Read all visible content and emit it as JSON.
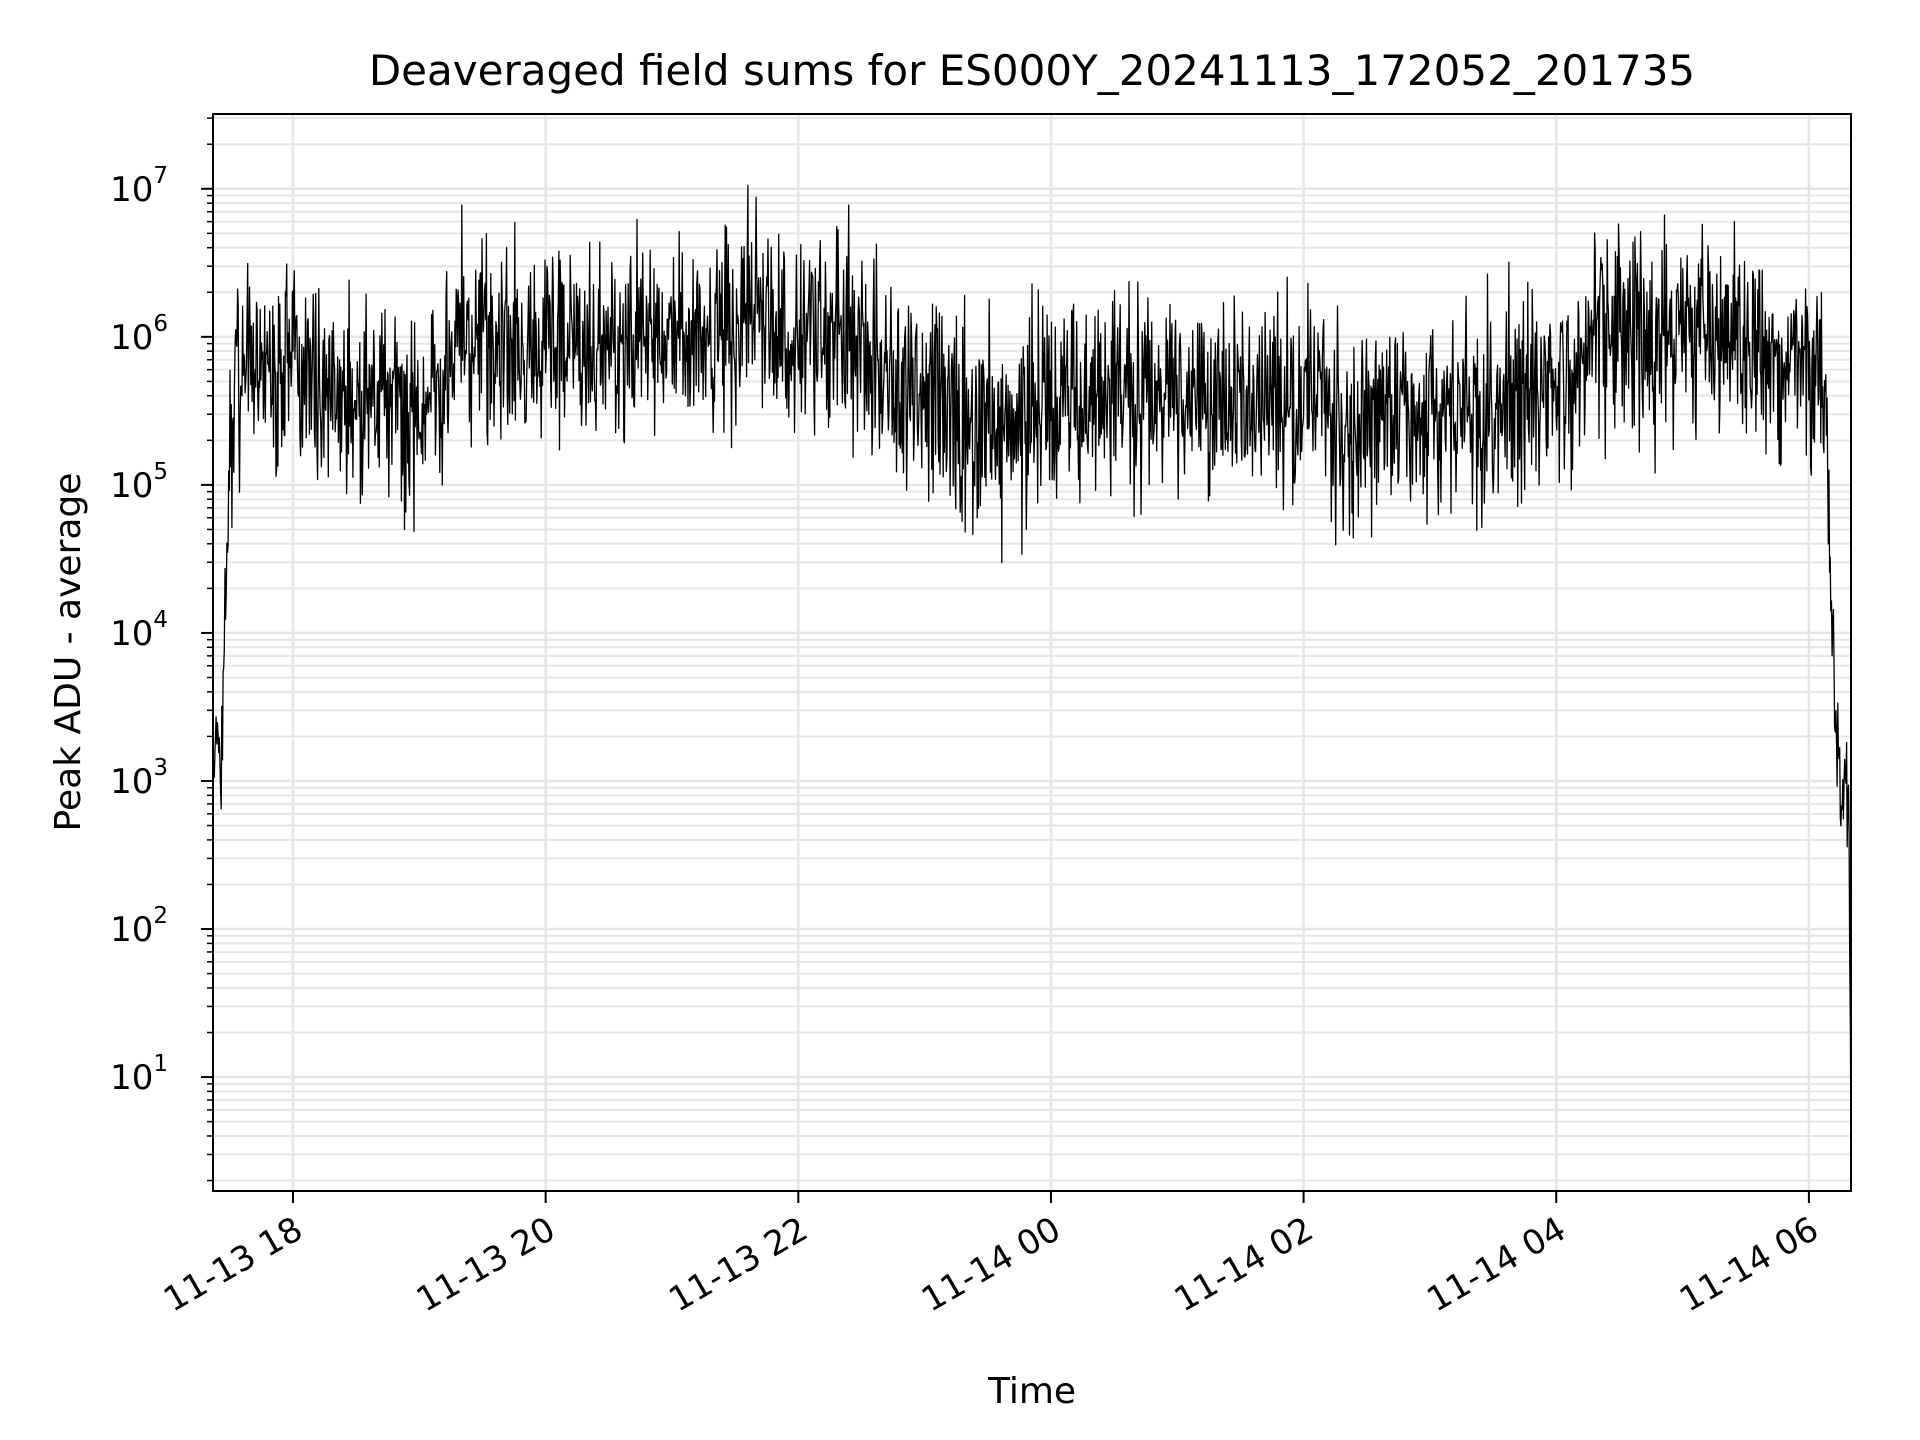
{
  "chart_data": {
    "type": "line",
    "title": "Deaveraged field sums for ES000Y_20241113_172052_201735",
    "xlabel": "Time",
    "ylabel": "Peak ADU - average",
    "yscale": "log",
    "ylim": [
      1.7,
      32000000
    ],
    "xlim": [
      "2024-11-13T17:22:00",
      "2024-11-14T06:20:00"
    ],
    "grid": "on",
    "line_color": "#000000",
    "grid_color": "#e6e6e6",
    "x_ticks": [
      {
        "t": "2024-11-13T18:00:00",
        "label": "11-13 18"
      },
      {
        "t": "2024-11-13T20:00:00",
        "label": "11-13 20"
      },
      {
        "t": "2024-11-13T22:00:00",
        "label": "11-13 22"
      },
      {
        "t": "2024-11-14T00:00:00",
        "label": "11-14 00"
      },
      {
        "t": "2024-11-14T02:00:00",
        "label": "11-14 02"
      },
      {
        "t": "2024-11-14T04:00:00",
        "label": "11-14 04"
      },
      {
        "t": "2024-11-14T06:00:00",
        "label": "11-14 06"
      }
    ],
    "y_ticks": [
      {
        "value": 10,
        "base": "10",
        "exp": "1"
      },
      {
        "value": 100,
        "base": "10",
        "exp": "2"
      },
      {
        "value": 1000,
        "base": "10",
        "exp": "3"
      },
      {
        "value": 10000,
        "base": "10",
        "exp": "4"
      },
      {
        "value": 100000,
        "base": "10",
        "exp": "5"
      },
      {
        "value": 1000000,
        "base": "10",
        "exp": "6"
      },
      {
        "value": 10000000,
        "base": "10",
        "exp": "7"
      }
    ],
    "series": [
      {
        "x": [
          "2024-11-13T17:22:00",
          "2024-11-13T17:24:00",
          "2024-11-13T17:26:00",
          "2024-11-13T17:28:00",
          "2024-11-13T17:30:00",
          "2024-11-13T17:33:00",
          "2024-11-13T17:36:00",
          "2024-11-13T17:40:00",
          "2024-11-13T17:50:00",
          "2024-11-13T18:00:00",
          "2024-11-13T18:10:00",
          "2024-11-13T18:20:00",
          "2024-11-13T18:40:00",
          "2024-11-13T19:00:00",
          "2024-11-13T19:20:00",
          "2024-11-13T19:40:00",
          "2024-11-13T20:00:00",
          "2024-11-13T20:20:00",
          "2024-11-13T20:40:00",
          "2024-11-13T21:00:00",
          "2024-11-13T21:20:00",
          "2024-11-13T21:40:00",
          "2024-11-13T22:00:00",
          "2024-11-13T22:20:00",
          "2024-11-13T22:40:00",
          "2024-11-13T23:00:00",
          "2024-11-13T23:20:00",
          "2024-11-13T23:40:00",
          "2024-11-14T00:00:00",
          "2024-11-14T00:20:00",
          "2024-11-14T00:40:00",
          "2024-11-14T01:00:00",
          "2024-11-14T01:20:00",
          "2024-11-14T01:40:00",
          "2024-11-14T02:00:00",
          "2024-11-14T02:20:00",
          "2024-11-14T02:40:00",
          "2024-11-14T03:00:00",
          "2024-11-14T03:20:00",
          "2024-11-14T03:40:00",
          "2024-11-14T04:00:00",
          "2024-11-14T04:20:00",
          "2024-11-14T04:40:00",
          "2024-11-14T05:00:00",
          "2024-11-14T05:20:00",
          "2024-11-14T05:40:00",
          "2024-11-14T06:00:00",
          "2024-11-14T06:08:00",
          "2024-11-14T06:11:00",
          "2024-11-14T06:13:00",
          "2024-11-14T06:15:00",
          "2024-11-14T06:17:00",
          "2024-11-14T06:19:00",
          "2024-11-14T06:20:00"
        ],
        "y": [
          1500,
          3000,
          900,
          20000,
          150000,
          700000,
          500000,
          800000,
          600000,
          700000,
          450000,
          400000,
          350000,
          300000,
          1200000,
          800000,
          900000,
          700000,
          800000,
          1000000,
          900000,
          1500000,
          800000,
          1200000,
          600000,
          500000,
          300000,
          250000,
          350000,
          300000,
          400000,
          400000,
          450000,
          350000,
          400000,
          300000,
          300000,
          350000,
          300000,
          400000,
          450000,
          1200000,
          900000,
          1100000,
          1000000,
          800000,
          700000,
          500000,
          9000,
          2500,
          800,
          1000,
          600,
          4
        ]
      }
    ]
  }
}
